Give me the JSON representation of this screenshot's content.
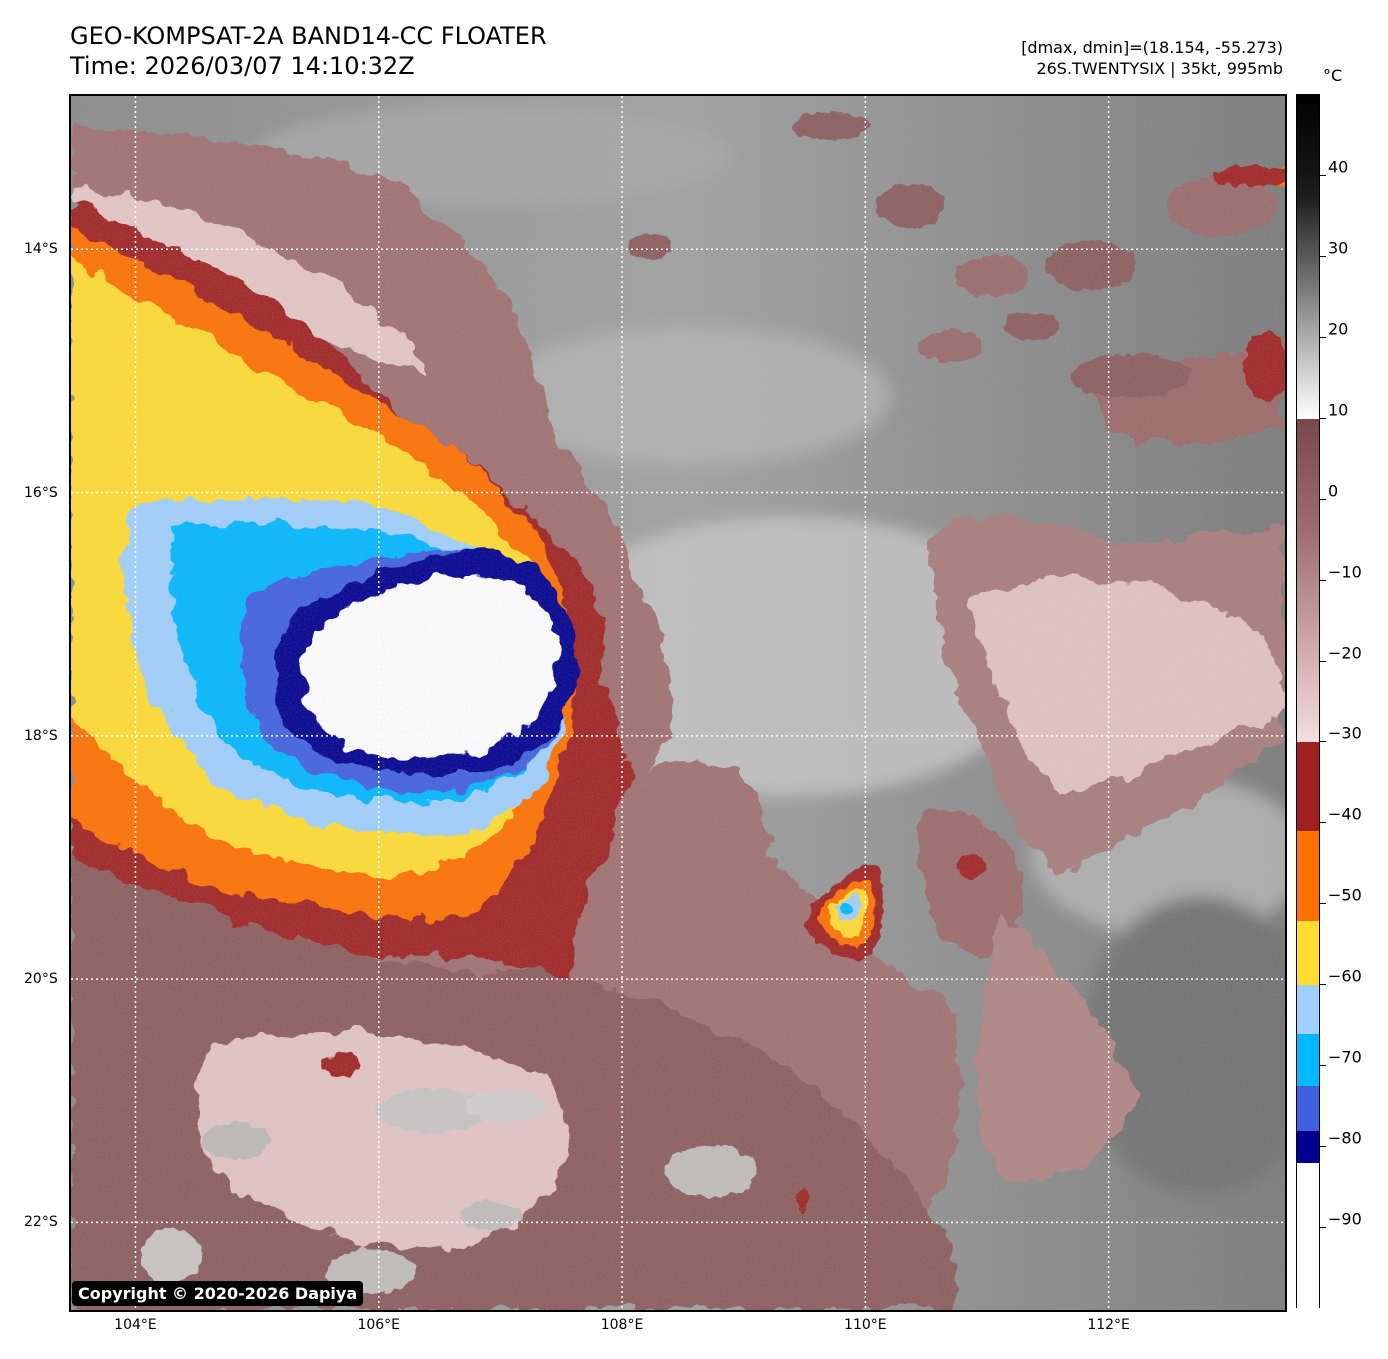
{
  "header": {
    "title_line1": "GEO-KOMPSAT-2A BAND14-CC FLOATER",
    "title_line2": "Time: 2026/03/07 14:10:32Z",
    "info_line1": "[dmax, dmin]=(18.154, -55.273)",
    "info_line2": "26S.TWENTYSIX | 35kt, 995mb"
  },
  "map": {
    "lat_labels": [
      "14°S",
      "16°S",
      "18°S",
      "20°S",
      "22°S"
    ],
    "lon_labels": [
      "104°E",
      "106°E",
      "108°E",
      "110°E",
      "112°E"
    ],
    "lat_values": [
      -14,
      -16,
      -18,
      -20,
      -22
    ],
    "lon_values": [
      104,
      106,
      108,
      110,
      112
    ],
    "extent": {
      "lon_min": 103.47,
      "lon_max": 113.45,
      "lat_max": -12.74,
      "lat_min": -22.72
    },
    "storm_name": "26S.TWENTYSIX",
    "colors": {
      "warm_gray_dark": "#6e6e6e",
      "warm_gray_light": "#c8c8c8",
      "mauve": "#8c5c5c",
      "pink": "#e8c8c8",
      "red": "#a02020",
      "orange": "#ff7000",
      "yellow": "#ffdc30",
      "light_blue": "#a0d0ff",
      "cyan": "#00b8ff",
      "royal_blue": "#4060e0",
      "navy": "#000090",
      "cold_white": "#ffffff"
    }
  },
  "colorbar": {
    "unit": "°C",
    "tick_labels": [
      "40",
      "30",
      "20",
      "10",
      "0",
      "−10",
      "−20",
      "−30",
      "−40",
      "−50",
      "−60",
      "−70",
      "−80",
      "−90"
    ],
    "tick_values": [
      40,
      30,
      20,
      10,
      0,
      -10,
      -20,
      -30,
      -40,
      -50,
      -60,
      -70,
      -80,
      -90
    ],
    "range": [
      -100,
      50
    ],
    "segments": [
      {
        "from": 50,
        "to": 10,
        "kind": "gray-black"
      },
      {
        "from": 10,
        "to": -30,
        "kind": "mauve-pink"
      },
      {
        "from": -30,
        "to": -41,
        "color": "#a02020"
      },
      {
        "from": -41,
        "to": -52,
        "color": "#ff7000"
      },
      {
        "from": -52,
        "to": -60,
        "color": "#ffdc30"
      },
      {
        "from": -60,
        "to": -66,
        "color": "#a0d0ff"
      },
      {
        "from": -66,
        "to": -72.5,
        "color": "#00b8ff"
      },
      {
        "from": -72.5,
        "to": -78,
        "color": "#4060e0"
      },
      {
        "from": -78,
        "to": -82,
        "color": "#000090"
      },
      {
        "from": -82,
        "to": -100,
        "color": "#ffffff"
      }
    ]
  },
  "footer": {
    "copyright": "Copyright © 2020-2026 Dapiya"
  }
}
